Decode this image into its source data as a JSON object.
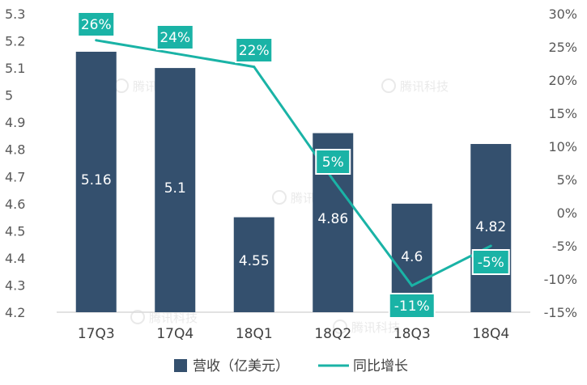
{
  "chart_data": {
    "type": "bar",
    "categories": [
      "17Q3",
      "17Q4",
      "18Q1",
      "18Q2",
      "18Q3",
      "18Q4"
    ],
    "series": [
      {
        "name": "营收（亿美元）",
        "type": "bar",
        "axis": "left",
        "color": "#34506e",
        "values": [
          5.16,
          5.1,
          4.55,
          4.86,
          4.6,
          4.82
        ],
        "labels": [
          "5.16",
          "5.1",
          "4.55",
          "4.86",
          "4.6",
          "4.82"
        ]
      },
      {
        "name": "同比增长",
        "type": "line",
        "axis": "right",
        "color": "#1ab3a6",
        "values": [
          26,
          24,
          22,
          5,
          -11,
          -5
        ],
        "labels": [
          "26%",
          "24%",
          "22%",
          "5%",
          "-11%",
          "-5%"
        ]
      }
    ],
    "y_left": {
      "range": [
        4.2,
        5.3
      ],
      "ticks": [
        "4.2",
        "4.3",
        "4.4",
        "4.5",
        "4.6",
        "4.7",
        "4.8",
        "4.9",
        "5",
        "5.1",
        "5.2",
        "5.3"
      ]
    },
    "y_right": {
      "range": [
        -15,
        30
      ],
      "ticks": [
        "-15%",
        "-10%",
        "-5%",
        "0%",
        "5%",
        "10%",
        "15%",
        "20%",
        "25%",
        "30%"
      ]
    },
    "legend_position": "bottom",
    "grid": false
  },
  "watermark": "腾讯科技",
  "colors": {
    "bar": "#34506e",
    "line": "#1ab3a6",
    "tick_text": "#595959",
    "axis": "#d9d9d9"
  }
}
